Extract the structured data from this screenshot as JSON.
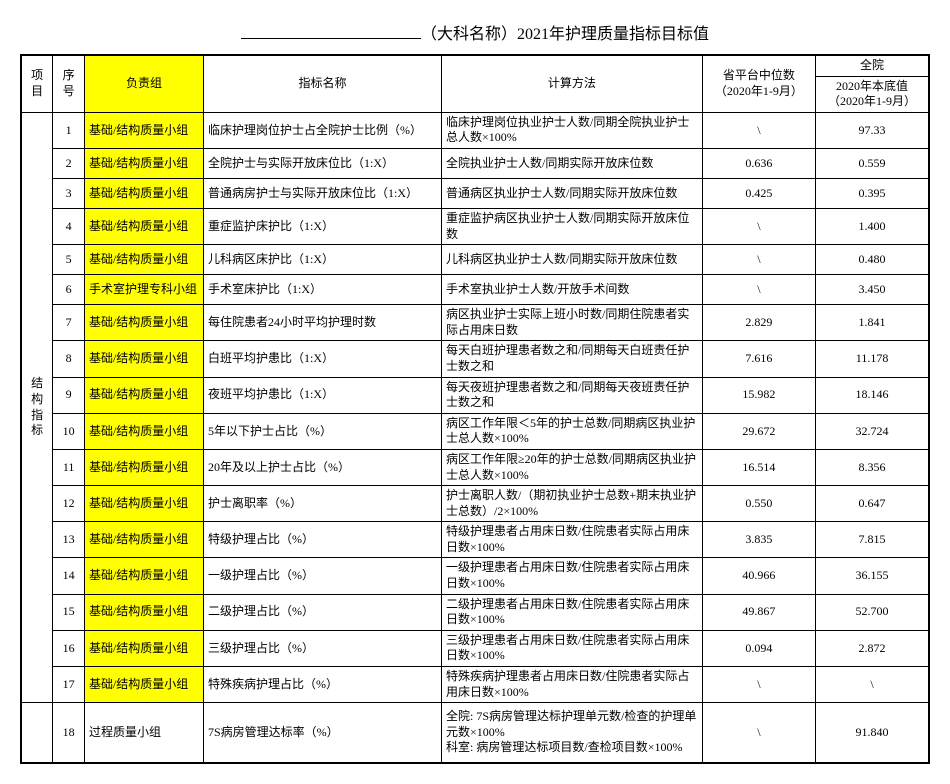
{
  "title_prefix": "（大科名称）",
  "title_suffix": "2021年护理质量指标目标值",
  "headers": {
    "project": "项目",
    "seq": "序号",
    "group": "负责组",
    "indicator": "指标名称",
    "method": "计算方法",
    "median": "省平台中位数\n（2020年1-9月）",
    "hospital": "全院",
    "base": "2020年本底值\n（2020年1-9月）"
  },
  "category1": "结构\n指标",
  "rows": [
    {
      "seq": "1",
      "group": "基础/结构质量小组",
      "indicator": "临床护理岗位护士占全院护士比例（%）",
      "method": "临床护理岗位执业护士人数/同期全院执业护士总人数×100%",
      "median": "\\",
      "base": "97.33",
      "hl": true
    },
    {
      "seq": "2",
      "group": "基础/结构质量小组",
      "indicator": "全院护士与实际开放床位比（1:X）",
      "method": "全院执业护士人数/同期实际开放床位数",
      "median": "0.636",
      "base": "0.559",
      "hl": true
    },
    {
      "seq": "3",
      "group": "基础/结构质量小组",
      "indicator": "普通病房护士与实际开放床位比（1:X）",
      "method": "普通病区执业护士人数/同期实际开放床位数",
      "median": "0.425",
      "base": "0.395",
      "hl": true
    },
    {
      "seq": "4",
      "group": "基础/结构质量小组",
      "indicator": "重症监护床护比（1:X）",
      "method": "重症监护病区执业护士人数/同期实际开放床位数",
      "median": "\\",
      "base": "1.400",
      "hl": true
    },
    {
      "seq": "5",
      "group": "基础/结构质量小组",
      "indicator": "儿科病区床护比（1:X）",
      "method": "儿科病区执业护士人数/同期实际开放床位数",
      "median": "\\",
      "base": "0.480",
      "hl": true
    },
    {
      "seq": "6",
      "group": "手术室护理专科小组",
      "indicator": "手术室床护比（1:X）",
      "method": "手术室执业护士人数/开放手术间数",
      "median": "\\",
      "base": "3.450",
      "hl": true
    },
    {
      "seq": "7",
      "group": "基础/结构质量小组",
      "indicator": "每住院患者24小时平均护理时数",
      "method": "病区执业护士实际上班小时数/同期住院患者实际占用床日数",
      "median": "2.829",
      "base": "1.841",
      "hl": true
    },
    {
      "seq": "8",
      "group": "基础/结构质量小组",
      "indicator": "白班平均护患比（1:X）",
      "method": "每天白班护理患者数之和/同期每天白班责任护士数之和",
      "median": "7.616",
      "base": "11.178",
      "hl": true
    },
    {
      "seq": "9",
      "group": "基础/结构质量小组",
      "indicator": "夜班平均护患比（1:X）",
      "method": "每天夜班护理患者数之和/同期每天夜班责任护士数之和",
      "median": "15.982",
      "base": "18.146",
      "hl": true
    },
    {
      "seq": "10",
      "group": "基础/结构质量小组",
      "indicator": "5年以下护士占比（%）",
      "method": "病区工作年限＜5年的护士总数/同期病区执业护士总人数×100%",
      "median": "29.672",
      "base": "32.724",
      "hl": true
    },
    {
      "seq": "11",
      "group": "基础/结构质量小组",
      "indicator": "20年及以上护士占比（%）",
      "method": "病区工作年限≥20年的护士总数/同期病区执业护士总人数×100%",
      "median": "16.514",
      "base": "8.356",
      "hl": true
    },
    {
      "seq": "12",
      "group": "基础/结构质量小组",
      "indicator": "护士离职率（%）",
      "method": "护士离职人数/（期初执业护士总数+期末执业护士总数）/2×100%",
      "median": "0.550",
      "base": "0.647",
      "hl": true
    },
    {
      "seq": "13",
      "group": "基础/结构质量小组",
      "indicator": "特级护理占比（%）",
      "method": "特级护理患者占用床日数/住院患者实际占用床日数×100%",
      "median": "3.835",
      "base": "7.815",
      "hl": true
    },
    {
      "seq": "14",
      "group": "基础/结构质量小组",
      "indicator": "一级护理占比（%）",
      "method": "一级护理患者占用床日数/住院患者实际占用床日数×100%",
      "median": "40.966",
      "base": "36.155",
      "hl": true
    },
    {
      "seq": "15",
      "group": "基础/结构质量小组",
      "indicator": "二级护理占比（%）",
      "method": "二级护理患者占用床日数/住院患者实际占用床日数×100%",
      "median": "49.867",
      "base": "52.700",
      "hl": true
    },
    {
      "seq": "16",
      "group": "基础/结构质量小组",
      "indicator": "三级护理占比（%）",
      "method": "三级护理患者占用床日数/住院患者实际占用床日数×100%",
      "median": "0.094",
      "base": "2.872",
      "hl": true
    },
    {
      "seq": "17",
      "group": "基础/结构质量小组",
      "indicator": "特殊疾病护理占比（%）",
      "method": "特殊疾病护理患者占用床日数/住院患者实际占用床日数×100%",
      "median": "\\",
      "base": "\\",
      "hl": true
    }
  ],
  "row18": {
    "seq": "18",
    "group": "过程质量小组",
    "indicator": "7S病房管理达标率（%）",
    "method": "全院: 7S病房管理达标护理单元数/检查的护理单元数×100%\n科室: 病房管理达标项目数/查检项目数×100%",
    "median": "\\",
    "base": "91.840",
    "hl": false
  }
}
